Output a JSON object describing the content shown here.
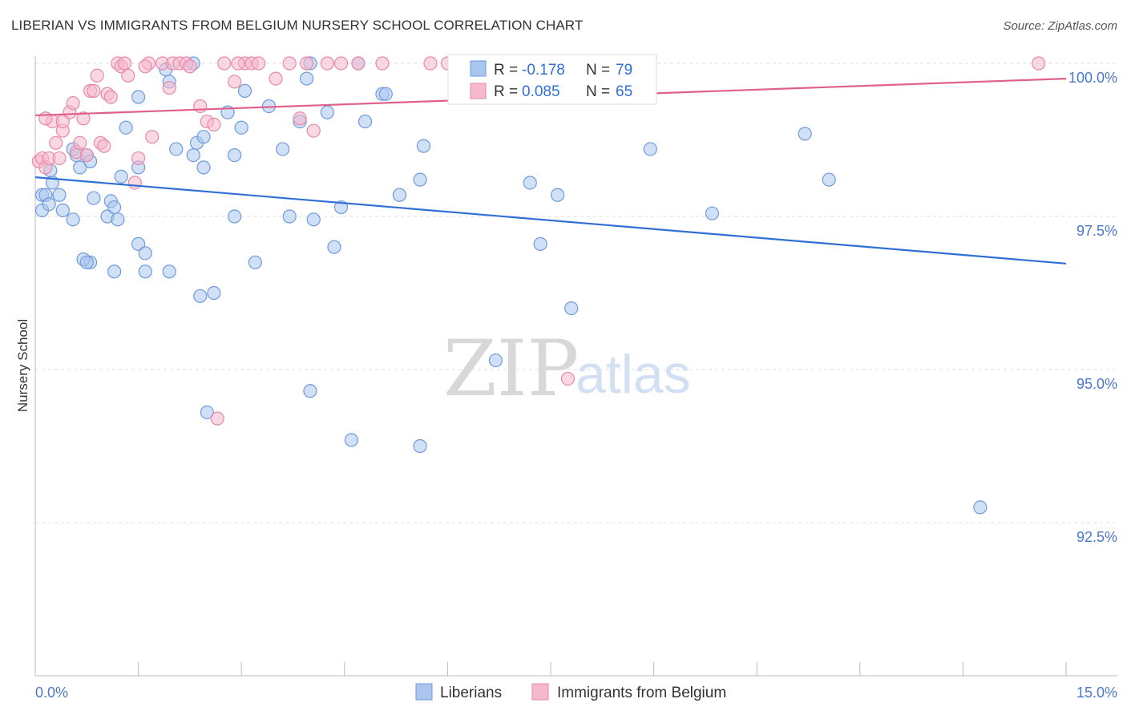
{
  "title": "LIBERIAN VS IMMIGRANTS FROM BELGIUM NURSERY SCHOOL CORRELATION CHART",
  "source": "Source: ZipAtlas.com",
  "watermark": {
    "zip": "ZIP",
    "atlas": "atlas"
  },
  "legend": {
    "r_label": "R =",
    "n_label": "N =",
    "rows": [
      {
        "r": "-0.178",
        "n": "79"
      },
      {
        "r": "0.085",
        "n": "65"
      }
    ]
  },
  "bottom_legend": [
    "Liberians",
    "Immigrants from Belgium"
  ],
  "colors": {
    "blue_fill": "#aac6ee",
    "blue_stroke": "#6f9bdc",
    "blue_line": "#2f6fd6",
    "pink_fill": "#f5b8cc",
    "pink_stroke": "#e888a8",
    "pink_line": "#e0608a",
    "grid": "#dddddd",
    "tick_text": "#4a78c8"
  },
  "chart_data": {
    "type": "scatter",
    "title": "LIBERIAN VS IMMIGRANTS FROM BELGIUM NURSERY SCHOOL CORRELATION CHART",
    "xlabel": "",
    "ylabel": "Nursery School",
    "xlim": [
      0,
      15
    ],
    "ylim": [
      90.2,
      100.3
    ],
    "x_tick_labels": [
      {
        "value": 0,
        "label": "0.0%"
      },
      {
        "value": 15,
        "label": "15.0%"
      }
    ],
    "y_tick_labels": [
      {
        "value": 100,
        "label": "100.0%"
      },
      {
        "value": 97.5,
        "label": "97.5%"
      },
      {
        "value": 95,
        "label": "95.0%"
      },
      {
        "value": 92.5,
        "label": "92.5%"
      }
    ],
    "grid": true,
    "legend_position": "top-center",
    "series": [
      {
        "name": "Liberians",
        "r": -0.178,
        "n": 79,
        "trend": {
          "x": [
            0,
            15
          ],
          "y": [
            98.14,
            96.73
          ]
        },
        "points": [
          [
            0.1,
            97.85
          ],
          [
            0.1,
            97.6
          ],
          [
            0.15,
            97.85
          ],
          [
            0.2,
            97.7
          ],
          [
            0.22,
            98.25
          ],
          [
            0.25,
            98.05
          ],
          [
            0.35,
            97.85
          ],
          [
            0.4,
            97.6
          ],
          [
            0.55,
            98.6
          ],
          [
            0.6,
            98.5
          ],
          [
            0.65,
            98.3
          ],
          [
            0.75,
            98.5
          ],
          [
            0.8,
            98.4
          ],
          [
            0.85,
            97.8
          ],
          [
            0.55,
            97.45
          ],
          [
            0.8,
            96.75
          ],
          [
            1.05,
            97.5
          ],
          [
            1.1,
            97.75
          ],
          [
            1.15,
            97.65
          ],
          [
            1.2,
            97.45
          ],
          [
            1.25,
            98.15
          ],
          [
            1.32,
            98.95
          ],
          [
            1.5,
            98.3
          ],
          [
            1.5,
            99.45
          ],
          [
            1.5,
            97.05
          ],
          [
            1.6,
            96.9
          ],
          [
            1.6,
            96.6
          ],
          [
            1.9,
            99.9
          ],
          [
            1.95,
            99.7
          ],
          [
            2.05,
            98.6
          ],
          [
            2.3,
            98.5
          ],
          [
            2.35,
            98.7
          ],
          [
            2.45,
            98.8
          ],
          [
            2.4,
            96.2
          ],
          [
            2.6,
            96.25
          ],
          [
            2.45,
            98.3
          ],
          [
            2.5,
            94.3
          ],
          [
            2.8,
            99.2
          ],
          [
            2.9,
            98.5
          ],
          [
            2.9,
            97.5
          ],
          [
            3.05,
            99.55
          ],
          [
            3.2,
            96.75
          ],
          [
            3.4,
            99.3
          ],
          [
            3.6,
            98.6
          ],
          [
            3.7,
            97.5
          ],
          [
            3.85,
            99.05
          ],
          [
            3.95,
            99.75
          ],
          [
            4.0,
            100.0
          ],
          [
            4.05,
            97.45
          ],
          [
            4.0,
            94.65
          ],
          [
            4.25,
            99.2
          ],
          [
            4.35,
            97.0
          ],
          [
            4.45,
            97.65
          ],
          [
            4.6,
            93.85
          ],
          [
            4.7,
            100.0
          ],
          [
            4.8,
            99.05
          ],
          [
            5.05,
            99.5
          ],
          [
            5.1,
            99.5
          ],
          [
            5.3,
            97.85
          ],
          [
            5.6,
            93.75
          ],
          [
            5.6,
            98.1
          ],
          [
            5.65,
            98.65
          ],
          [
            6.3,
            100.0
          ],
          [
            6.7,
            95.15
          ],
          [
            7.2,
            98.05
          ],
          [
            7.35,
            97.05
          ],
          [
            7.6,
            97.85
          ],
          [
            7.8,
            96.0
          ],
          [
            8.95,
            98.6
          ],
          [
            9.85,
            97.55
          ],
          [
            11.2,
            98.85
          ],
          [
            11.55,
            98.1
          ],
          [
            13.75,
            92.75
          ],
          [
            0.7,
            96.8
          ],
          [
            0.75,
            96.75
          ],
          [
            1.15,
            96.6
          ],
          [
            1.95,
            96.6
          ],
          [
            3.0,
            98.95
          ],
          [
            2.3,
            100.0
          ]
        ]
      },
      {
        "name": "Immigrants from Belgium",
        "r": 0.085,
        "n": 65,
        "trend": {
          "x": [
            0,
            15
          ],
          "y": [
            99.15,
            99.75
          ]
        },
        "points": [
          [
            0.05,
            98.4
          ],
          [
            0.1,
            98.45
          ],
          [
            0.15,
            98.3
          ],
          [
            0.2,
            98.45
          ],
          [
            0.25,
            99.05
          ],
          [
            0.3,
            98.7
          ],
          [
            0.35,
            98.45
          ],
          [
            0.4,
            98.9
          ],
          [
            0.5,
            99.2
          ],
          [
            0.55,
            99.35
          ],
          [
            0.6,
            98.55
          ],
          [
            0.65,
            98.7
          ],
          [
            0.7,
            99.1
          ],
          [
            0.75,
            98.5
          ],
          [
            0.8,
            99.55
          ],
          [
            0.85,
            99.55
          ],
          [
            0.9,
            99.8
          ],
          [
            0.95,
            98.7
          ],
          [
            1.0,
            98.65
          ],
          [
            1.05,
            99.5
          ],
          [
            1.1,
            99.45
          ],
          [
            1.2,
            100.0
          ],
          [
            1.25,
            99.95
          ],
          [
            1.3,
            100.0
          ],
          [
            1.35,
            99.8
          ],
          [
            1.45,
            98.05
          ],
          [
            1.5,
            98.45
          ],
          [
            1.7,
            98.8
          ],
          [
            1.65,
            100.0
          ],
          [
            1.85,
            100.0
          ],
          [
            1.95,
            99.6
          ],
          [
            2.0,
            100.0
          ],
          [
            2.1,
            100.0
          ],
          [
            2.2,
            100.0
          ],
          [
            2.4,
            99.3
          ],
          [
            2.5,
            99.05
          ],
          [
            2.6,
            99.0
          ],
          [
            2.65,
            94.2
          ],
          [
            2.75,
            100.0
          ],
          [
            2.9,
            99.7
          ],
          [
            3.05,
            100.0
          ],
          [
            3.15,
            100.0
          ],
          [
            3.25,
            100.0
          ],
          [
            3.5,
            99.75
          ],
          [
            3.7,
            100.0
          ],
          [
            3.85,
            99.1
          ],
          [
            3.95,
            100.0
          ],
          [
            4.05,
            98.9
          ],
          [
            4.25,
            100.0
          ],
          [
            4.45,
            100.0
          ],
          [
            4.7,
            100.0
          ],
          [
            5.05,
            100.0
          ],
          [
            5.75,
            100.0
          ],
          [
            6.0,
            100.0
          ],
          [
            6.3,
            100.0
          ],
          [
            6.65,
            100.0
          ],
          [
            7.75,
            94.85
          ],
          [
            8.0,
            100.0
          ],
          [
            8.3,
            100.0
          ],
          [
            14.6,
            100.0
          ],
          [
            0.15,
            99.1
          ],
          [
            0.4,
            99.05
          ],
          [
            1.6,
            99.95
          ],
          [
            2.25,
            99.95
          ],
          [
            2.95,
            100.0
          ]
        ]
      }
    ]
  }
}
